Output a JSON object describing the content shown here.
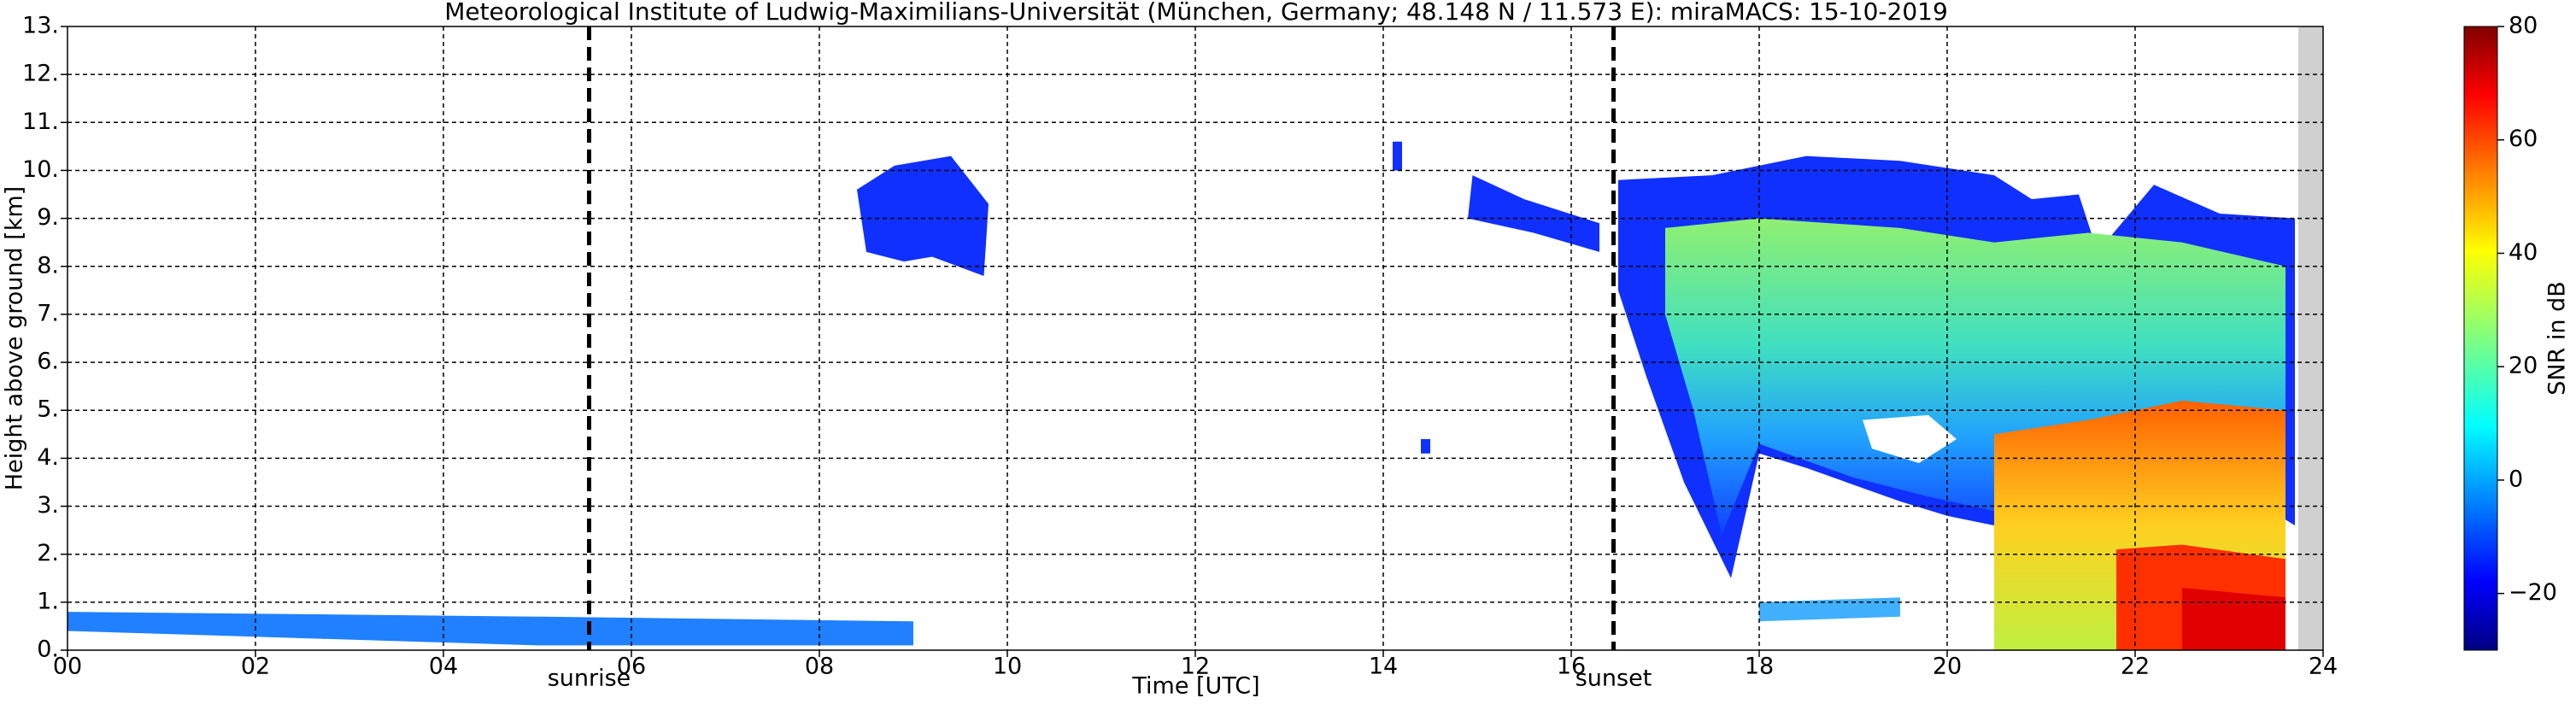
{
  "chart_data": {
    "type": "heatmap",
    "title": "Meteorological Institute of Ludwig-Maximilians-Universität (München, Germany; 48.148 N / 11.573 E):    miraMACS: 15-10-2019",
    "x_label": "Time [UTC]",
    "y_label": "Height above ground [km]",
    "xlim": [
      0,
      24
    ],
    "xticks": [
      {
        "value": 0,
        "label": "00"
      },
      {
        "value": 2,
        "label": "02"
      },
      {
        "value": 4,
        "label": "04"
      },
      {
        "value": 6,
        "label": "06"
      },
      {
        "value": 8,
        "label": "08"
      },
      10,
      12,
      14,
      16,
      18,
      20,
      22,
      24
    ],
    "ylim": [
      0,
      13
    ],
    "yticks": [
      {
        "value": 0,
        "label": "0."
      },
      {
        "value": 1,
        "label": "1."
      },
      {
        "value": 2,
        "label": "2."
      },
      {
        "value": 3,
        "label": "3."
      },
      {
        "value": 4,
        "label": "4."
      },
      {
        "value": 5,
        "label": "5."
      },
      {
        "value": 6,
        "label": "6."
      },
      {
        "value": 7,
        "label": "7."
      },
      {
        "value": 8,
        "label": "8."
      },
      {
        "value": 9,
        "label": "9."
      },
      {
        "value": 10,
        "label": "10."
      },
      {
        "value": 11,
        "label": "11."
      },
      {
        "value": 12,
        "label": "12."
      },
      {
        "value": 13,
        "label": "13."
      }
    ],
    "grid": true,
    "events": [
      {
        "name": "sunrise",
        "x": 5.55
      },
      {
        "name": "sunset",
        "x": 16.45
      }
    ],
    "colorbar": {
      "label": "SNR in dB",
      "clim": [
        -30,
        80
      ],
      "ticks": [
        {
          "value": -20,
          "label": "−20"
        },
        0,
        20,
        40,
        60,
        80
      ]
    }
  }
}
